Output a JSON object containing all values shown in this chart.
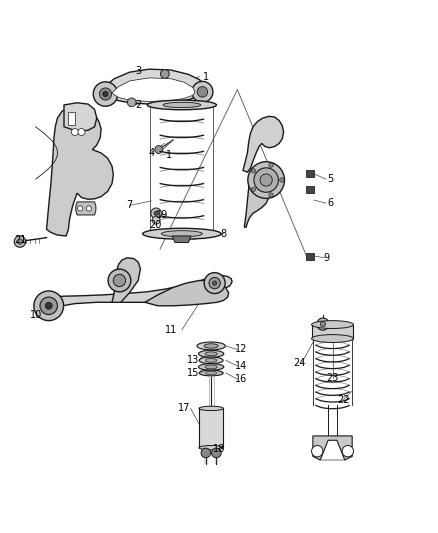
{
  "bg_color": "#ffffff",
  "line_color": "#1a1a1a",
  "label_color": "#000000",
  "fig_width": 4.38,
  "fig_height": 5.33,
  "dpi": 100,
  "labels": {
    "1a": [
      0.47,
      0.935,
      "1"
    ],
    "1b": [
      0.385,
      0.755,
      "1"
    ],
    "2": [
      0.315,
      0.87,
      "2"
    ],
    "3": [
      0.315,
      0.948,
      "3"
    ],
    "4": [
      0.345,
      0.76,
      "4"
    ],
    "5": [
      0.755,
      0.7,
      "5"
    ],
    "6": [
      0.755,
      0.645,
      "6"
    ],
    "7": [
      0.295,
      0.64,
      "7"
    ],
    "8": [
      0.51,
      0.575,
      "8"
    ],
    "9": [
      0.745,
      0.52,
      "9"
    ],
    "10": [
      0.08,
      0.39,
      "10"
    ],
    "11": [
      0.39,
      0.355,
      "11"
    ],
    "12": [
      0.55,
      0.31,
      "12"
    ],
    "13": [
      0.44,
      0.285,
      "13"
    ],
    "14": [
      0.55,
      0.272,
      "14"
    ],
    "15": [
      0.44,
      0.256,
      "15"
    ],
    "16": [
      0.55,
      0.242,
      "16"
    ],
    "17": [
      0.42,
      0.175,
      "17"
    ],
    "18": [
      0.5,
      0.083,
      "18"
    ],
    "19": [
      0.37,
      0.618,
      "19"
    ],
    "20": [
      0.355,
      0.595,
      "20"
    ],
    "21": [
      0.045,
      0.56,
      "21"
    ],
    "22": [
      0.785,
      0.195,
      "22"
    ],
    "23": [
      0.76,
      0.245,
      "23"
    ],
    "24": [
      0.685,
      0.28,
      "24"
    ]
  }
}
